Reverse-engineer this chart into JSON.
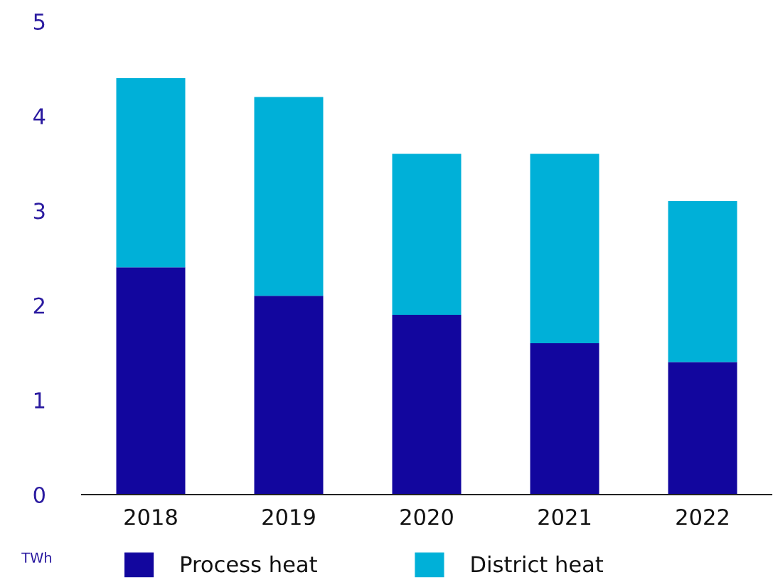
{
  "chart_data": {
    "type": "bar",
    "stacked": true,
    "ylabel": "TWh",
    "categories": [
      "2018",
      "2019",
      "2020",
      "2021",
      "2022"
    ],
    "series": [
      {
        "name": "Process heat",
        "color": "#12069e",
        "values": [
          2.4,
          2.1,
          1.9,
          1.6,
          1.4
        ]
      },
      {
        "name": "District heat",
        "color": "#00b0d8",
        "values": [
          2.0,
          2.1,
          1.7,
          2.0,
          1.7
        ]
      }
    ],
    "ylim": [
      0,
      5
    ],
    "yticks": [
      0,
      1,
      2,
      3,
      4,
      5
    ],
    "grid": false,
    "legend": "bottom"
  }
}
